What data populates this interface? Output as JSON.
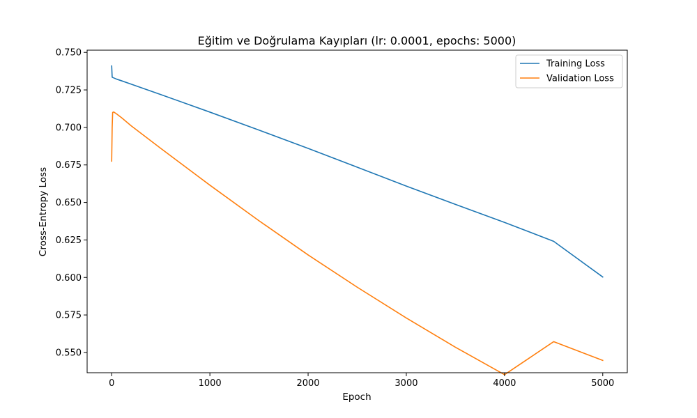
{
  "chart_data": {
    "type": "line",
    "title": "Eğitim ve Doğrulama Kayıpları (lr: 0.0001, epochs: 5000)",
    "xlabel": "Epoch",
    "ylabel": "Cross-Entropy Loss",
    "xlim": [
      -250,
      5250
    ],
    "ylim": [
      0.5365,
      0.7515
    ],
    "xticks": [
      0,
      1000,
      2000,
      3000,
      4000,
      5000
    ],
    "xtick_labels": [
      "0",
      "1000",
      "2000",
      "3000",
      "4000",
      "5000"
    ],
    "yticks": [
      0.55,
      0.575,
      0.6,
      0.625,
      0.65,
      0.675,
      0.7,
      0.725,
      0.75
    ],
    "ytick_labels": [
      "0.550",
      "0.575",
      "0.600",
      "0.625",
      "0.650",
      "0.675",
      "0.700",
      "0.725",
      "0.750"
    ],
    "grid": false,
    "legend_position": "top-right",
    "series": [
      {
        "name": "Training Loss",
        "color": "#1f77b4",
        "x": [
          0,
          5,
          10,
          50,
          100,
          200,
          500,
          1000,
          1500,
          2000,
          2500,
          3000,
          3500,
          4000,
          4500,
          5000
        ],
        "y": [
          0.741,
          0.7335,
          0.7333,
          0.7322,
          0.7311,
          0.7288,
          0.7219,
          0.7102,
          0.6982,
          0.686,
          0.6735,
          0.6609,
          0.6487,
          0.6367,
          0.6241,
          0.6003
        ]
      },
      {
        "name": "Validation Loss",
        "color": "#ff7f0e",
        "x": [
          0,
          5,
          10,
          20,
          50,
          100,
          200,
          500,
          1000,
          1500,
          2000,
          2500,
          3000,
          3500,
          4000,
          4500,
          5000
        ],
        "y": [
          0.6775,
          0.7,
          0.71,
          0.7103,
          0.709,
          0.7065,
          0.701,
          0.686,
          0.6615,
          0.6378,
          0.615,
          0.5935,
          0.573,
          0.5535,
          0.5352,
          0.5572,
          0.5447
        ]
      }
    ]
  }
}
